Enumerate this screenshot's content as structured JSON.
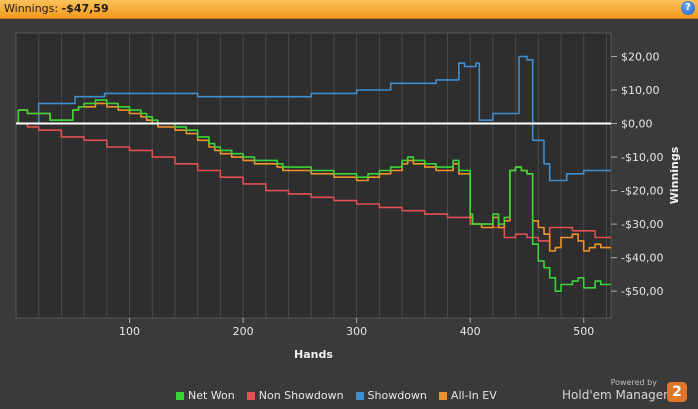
{
  "header": {
    "label": "Winnings:",
    "value": "-$47,59",
    "help": "?"
  },
  "footer": {
    "powered": "Powered by",
    "brand": "Hold'em Manager",
    "badge": "2"
  },
  "chart_data": {
    "type": "line",
    "xlabel": "Hands",
    "ylabel": "Winnings",
    "xlim": [
      0,
      524
    ],
    "ylim": [
      -58,
      27
    ],
    "x_ticks": [
      100,
      200,
      300,
      400,
      500
    ],
    "y_ticks": [
      20,
      10,
      0,
      -10,
      -20,
      -30,
      -40,
      -50
    ],
    "y_tick_labels": [
      "$20,00",
      "$10,00",
      "$0,00",
      "-$10,00",
      "-$20,00",
      "-$30,00",
      "-$40,00",
      "-$50,00"
    ],
    "grid": "vertical",
    "legend_position": "bottom",
    "series": [
      {
        "name": "Net Won",
        "color": "#3ad43a",
        "x": [
          0,
          2,
          10,
          20,
          30,
          50,
          55,
          60,
          70,
          80,
          90,
          100,
          110,
          115,
          120,
          125,
          140,
          150,
          160,
          170,
          175,
          180,
          190,
          200,
          210,
          220,
          230,
          235,
          245,
          260,
          280,
          300,
          310,
          320,
          330,
          340,
          345,
          350,
          360,
          370,
          380,
          385,
          390,
          395,
          400,
          402,
          410,
          420,
          425,
          430,
          435,
          440,
          445,
          450,
          455,
          460,
          465,
          470,
          475,
          480,
          490,
          495,
          500,
          505,
          510,
          515,
          520,
          524
        ],
        "y": [
          0,
          4,
          3,
          3,
          1,
          4,
          5,
          6,
          7,
          6,
          5,
          4,
          3,
          2,
          1,
          0,
          -1,
          -2,
          -4,
          -6,
          -7,
          -8,
          -9,
          -10,
          -11,
          -11,
          -12,
          -13,
          -13,
          -14,
          -15,
          -16,
          -15,
          -14,
          -13,
          -11,
          -10,
          -11,
          -12,
          -13,
          -13,
          -11,
          -14,
          -14,
          -27,
          -30,
          -30,
          -27,
          -30,
          -28,
          -14,
          -13,
          -14,
          -15,
          -36,
          -41,
          -43,
          -46,
          -50,
          -48,
          -47,
          -46,
          -49,
          -49,
          -47,
          -48,
          -48,
          -48
        ]
      },
      {
        "name": "Non Showdown",
        "color": "#e05050",
        "x": [
          0,
          10,
          20,
          40,
          60,
          80,
          100,
          120,
          140,
          160,
          180,
          200,
          220,
          240,
          260,
          280,
          300,
          320,
          340,
          360,
          380,
          400,
          420,
          430,
          440,
          450,
          460,
          470,
          480,
          490,
          500,
          510,
          520,
          524
        ],
        "y": [
          0,
          -1,
          -2,
          -4,
          -5,
          -7,
          -8,
          -10,
          -12,
          -14,
          -16,
          -18,
          -20,
          -21,
          -22,
          -23,
          -24,
          -25,
          -26,
          -27,
          -28,
          -30,
          -31,
          -34,
          -33,
          -34,
          -35,
          -31,
          -31,
          -32,
          -32,
          -34,
          -34,
          -34
        ]
      },
      {
        "name": "Showdown",
        "color": "#3e8ed0",
        "x": [
          0,
          20,
          50,
          52,
          75,
          78,
          120,
          125,
          150,
          160,
          190,
          195,
          260,
          265,
          300,
          305,
          330,
          335,
          370,
          375,
          390,
          395,
          405,
          408,
          415,
          420,
          440,
          443,
          450,
          455,
          465,
          470,
          480,
          485,
          500,
          505,
          524
        ],
        "y": [
          0,
          6,
          6,
          8,
          8,
          9,
          9,
          9,
          9,
          8,
          8,
          8,
          9,
          9,
          10,
          10,
          12,
          12,
          13,
          13,
          18,
          17,
          18,
          1,
          1,
          3,
          3,
          20,
          19,
          -5,
          -12,
          -17,
          -17,
          -15,
          -14,
          -14,
          -14
        ]
      },
      {
        "name": "All-In EV",
        "color": "#f0922a",
        "x": [
          0,
          2,
          10,
          20,
          30,
          50,
          55,
          60,
          70,
          80,
          90,
          100,
          110,
          115,
          120,
          125,
          140,
          150,
          160,
          170,
          175,
          180,
          190,
          200,
          210,
          220,
          230,
          235,
          245,
          260,
          280,
          300,
          310,
          320,
          330,
          340,
          345,
          350,
          360,
          370,
          380,
          385,
          390,
          395,
          400,
          402,
          410,
          420,
          425,
          430,
          435,
          440,
          445,
          450,
          455,
          460,
          465,
          470,
          475,
          480,
          490,
          495,
          500,
          505,
          510,
          515,
          520,
          524
        ],
        "y": [
          0,
          4,
          3,
          3,
          1,
          4,
          5,
          5,
          6,
          5,
          4,
          3,
          2,
          1,
          0,
          -1,
          -2,
          -3,
          -5,
          -7,
          -8,
          -9,
          -10,
          -11,
          -12,
          -12,
          -13,
          -14,
          -14,
          -15,
          -16,
          -17,
          -16,
          -15,
          -14,
          -12,
          -11,
          -12,
          -13,
          -14,
          -14,
          -12,
          -15,
          -15,
          -28,
          -30,
          -31,
          -28,
          -31,
          -29,
          -14,
          -13,
          -14,
          -15,
          -29,
          -31,
          -33,
          -38,
          -37,
          -34,
          -33,
          -35,
          -38,
          -37,
          -36,
          -37,
          -37,
          -37
        ]
      }
    ]
  }
}
